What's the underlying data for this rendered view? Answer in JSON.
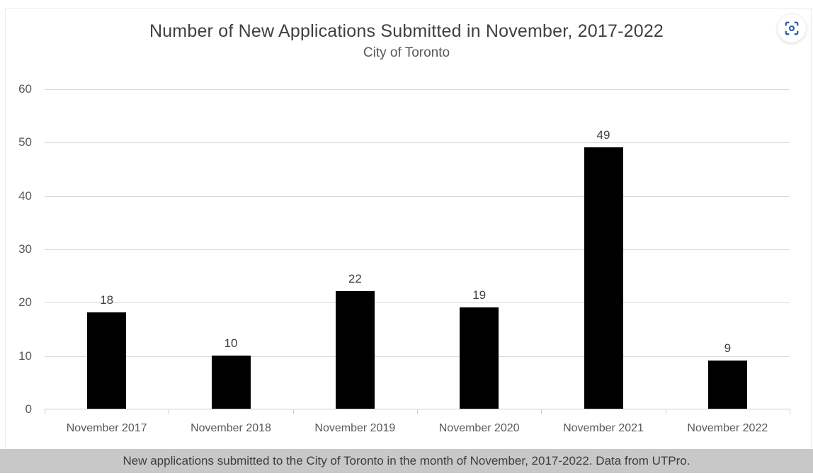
{
  "header": {
    "title": "Number of New Applications Submitted in November, 2017-2022",
    "subtitle": "City of Toronto"
  },
  "toolbar": {
    "capture_icon": "focus-capture-icon",
    "icon_color": "#2a5ca9"
  },
  "chart_data": {
    "type": "bar",
    "title": "Number of New Applications Submitted in November, 2017-2022",
    "subtitle": "City of Toronto",
    "categories": [
      "November 2017",
      "November 2018",
      "November 2019",
      "November 2020",
      "November 2021",
      "November 2022"
    ],
    "values": [
      18,
      10,
      22,
      19,
      49,
      9
    ],
    "value_labels_shown": true,
    "xlabel": "",
    "ylabel": "",
    "ylim": [
      0,
      60
    ],
    "yticks": [
      0,
      10,
      20,
      30,
      40,
      50,
      60
    ],
    "grid": true,
    "legend": false,
    "bar_color": "#000000",
    "gridline_color": "#d9d9d9",
    "axis_line_color": "#c9c9c9",
    "tick_label_color": "#595959",
    "value_label_color": "#404040"
  },
  "caption": {
    "text": "New applications submitted to the City of Toronto in the month of November, 2017-2022. Data from UTPro."
  }
}
